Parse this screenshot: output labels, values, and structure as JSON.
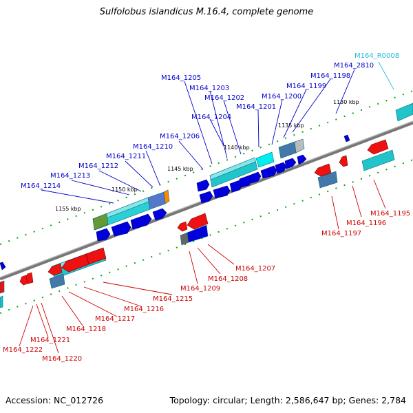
{
  "title": "Sulfolobus islandicus M.16.4, complete genome",
  "footer": {
    "accession": "Accession: NC_012726",
    "summary": "Topology: circular; Length: 2,586,647 bp; Genes: 2,784"
  },
  "colors": {
    "top_label": "#0000cc",
    "bottom_label": "#cc0000",
    "rna_label": "#22bbdd",
    "forward_gene": "#0000dd",
    "reverse_gene": "#ee1111",
    "cds_band": "#22c4cc",
    "tick_green": "#008800",
    "backbone": "#808080"
  },
  "scale_labels": [
    "1130 kbp",
    "1135 kbp",
    "1140 kbp",
    "1145 kbp",
    "1150 kbp",
    "1155 kbp"
  ],
  "top_genes": [
    "M164_1205",
    "M164_1203",
    "M164_1202",
    "M164_1201",
    "M164_1204",
    "M164_1200",
    "M164_1199",
    "M164_1198",
    "M164_2810",
    "M164_1206",
    "M164_1210",
    "M164_1211",
    "M164_1212",
    "M164_1213",
    "M164_1214"
  ],
  "rna_gene": "M164_R0008",
  "bottom_genes": [
    "M164_1195",
    "M164_1196",
    "M164_1197",
    "M164_1207",
    "M164_1208",
    "M164_1209",
    "M164_1215",
    "M164_1216",
    "M164_1217",
    "M164_1218",
    "M164_1222",
    "M164_1221",
    "M164_1220"
  ]
}
